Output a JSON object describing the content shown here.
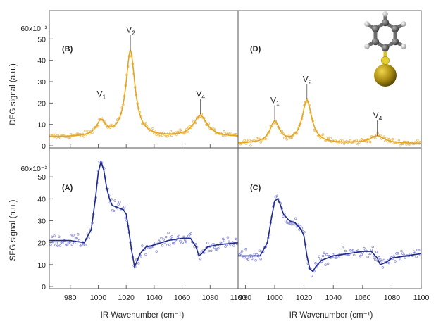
{
  "figure": {
    "dfg_ylabel": "DFG signal (a.u.)",
    "sfg_ylabel": "SFG signal (a.u.)",
    "xlabel_left": "IR Wavenumber (cm⁻¹)",
    "xlabel_right": "IR Wavenumber (cm⁻¹)",
    "y_scale_top": "60x10⁻³",
    "y_scale_bottom": "60x10⁻³",
    "molecule_icon": "thiophenol-gold-molecule-icon"
  },
  "chart_data": [
    {
      "type": "scatter",
      "panel": "(B)",
      "xlim": [
        965,
        1100
      ],
      "ylim": [
        0,
        60
      ],
      "y_scale_label": "60x10⁻³",
      "x_ticks": [
        "980",
        "1000",
        "1020",
        "1040",
        "1060",
        "1080",
        "1100"
      ],
      "y_ticks": [
        "0",
        "10",
        "20",
        "30",
        "40",
        "50"
      ],
      "fit": {
        "type": "lorentz",
        "baseline": 4,
        "peaks": [
          [
            1002,
            7,
            4
          ],
          [
            1023,
            40,
            4
          ],
          [
            1073,
            10,
            6
          ]
        ]
      },
      "peak_labels": [
        {
          "label": "V",
          "sub": "1",
          "x": 1002,
          "y": 14
        },
        {
          "label": "V",
          "sub": "2",
          "x": 1023,
          "y": 44
        },
        {
          "label": "V",
          "sub": "4",
          "x": 1073,
          "y": 14
        }
      ],
      "colors": {
        "points": "#e8b95a",
        "fit": "#e4a621"
      },
      "grid": false
    },
    {
      "type": "scatter",
      "panel": "(D)",
      "xlim": [
        975,
        1100
      ],
      "ylim": [
        0,
        60
      ],
      "x_ticks": [],
      "y_ticks": [],
      "fit": {
        "type": "lorentz",
        "baseline": 1,
        "peaks": [
          [
            1000,
            10,
            4
          ],
          [
            1022,
            20,
            4
          ],
          [
            1070,
            3.5,
            6
          ]
        ]
      },
      "peak_labels": [
        {
          "label": "V",
          "sub": "1",
          "x": 1000,
          "y": 11
        },
        {
          "label": "V",
          "sub": "2",
          "x": 1022,
          "y": 21
        },
        {
          "label": "V",
          "sub": "4",
          "x": 1070,
          "y": 4
        }
      ],
      "colors": {
        "points": "#e8b95a",
        "fit": "#e4a621"
      },
      "grid": false
    },
    {
      "type": "scatter",
      "panel": "(A)",
      "xlim": [
        965,
        1100
      ],
      "ylim": [
        0,
        60
      ],
      "y_scale_label": "60x10⁻³",
      "x_ticks": [
        "980",
        "1000",
        "1020",
        "1040",
        "1060",
        "1080",
        "1100"
      ],
      "y_ticks": [
        "0",
        "10",
        "20",
        "30",
        "40",
        "50"
      ],
      "xlabel": "IR Wavenumber (cm⁻¹)",
      "fit_curve": {
        "x": [
          965,
          980,
          990,
          995,
          998,
          1000,
          1002,
          1004,
          1006,
          1008,
          1010,
          1014,
          1018,
          1020,
          1022,
          1024,
          1026,
          1028,
          1030,
          1034,
          1040,
          1050,
          1060,
          1066,
          1070,
          1072,
          1074,
          1078,
          1085,
          1100
        ],
        "y": [
          21,
          21,
          20,
          26,
          40,
          52,
          57,
          53,
          45,
          40,
          37,
          36,
          35,
          33,
          25,
          16,
          9,
          12,
          15,
          18,
          19,
          21,
          22,
          22,
          18,
          14,
          15,
          18,
          19,
          20
        ]
      },
      "colors": {
        "points": "#8d8ed6",
        "fit": "#1e2a8c"
      },
      "grid": false
    },
    {
      "type": "scatter",
      "panel": "(C)",
      "xlim": [
        975,
        1100
      ],
      "ylim": [
        0,
        60
      ],
      "x_ticks": [
        "980",
        "1000",
        "1020",
        "1040",
        "1060",
        "1080",
        "1100"
      ],
      "xlabel": "IR Wavenumber (cm⁻¹)",
      "fit_curve": {
        "x": [
          975,
          980,
          990,
          995,
          998,
          1000,
          1002,
          1004,
          1006,
          1010,
          1014,
          1018,
          1020,
          1022,
          1024,
          1026,
          1028,
          1032,
          1040,
          1050,
          1060,
          1066,
          1070,
          1072,
          1076,
          1080,
          1090,
          1100
        ],
        "y": [
          14,
          14,
          14,
          20,
          32,
          39,
          40,
          37,
          33,
          30,
          29,
          26,
          23,
          14,
          8,
          7,
          9,
          12,
          14,
          15,
          16,
          16,
          13,
          10,
          11,
          13,
          14,
          15
        ]
      },
      "colors": {
        "points": "#8d8ed6",
        "fit": "#1e2a8c"
      },
      "grid": false
    }
  ]
}
